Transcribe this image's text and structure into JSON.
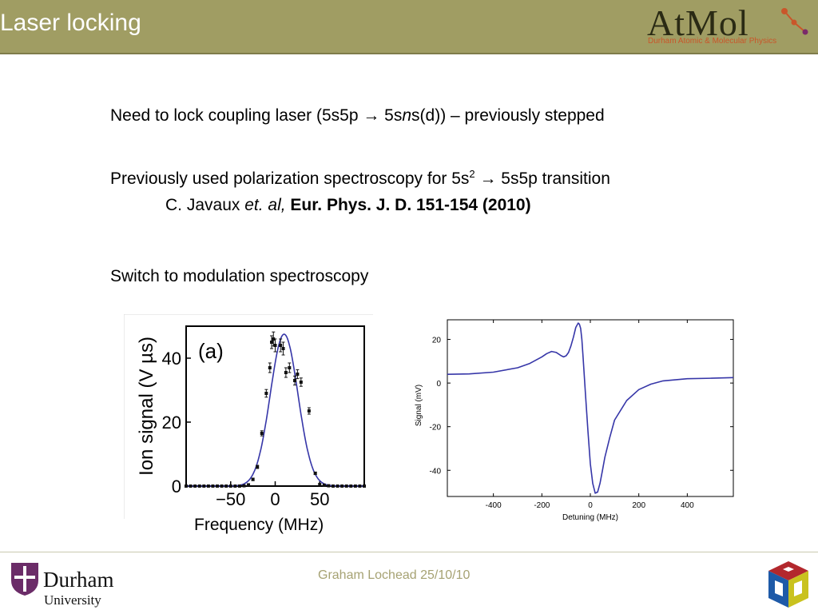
{
  "header": {
    "title": "Laser locking",
    "logo_text": "AtMol",
    "logo_subtitle": "Durham Atomic & Molecular Physics"
  },
  "bullets": {
    "b1_prefix": "Need to lock coupling laser (5s5p → 5s",
    "b1_italic": "n",
    "b1_suffix": "s(d)) – previously stepped",
    "b2_prefix": "Previously used polarization spectroscopy for 5s",
    "b2_sup": "2",
    "b2_suffix": " → 5s5p transition",
    "ref_author": "C. Javaux ",
    "ref_etal": "et. al,",
    "ref_journal": " Eur. Phys. J. D. 151-154 (2010)",
    "b3": "Switch to modulation spectroscopy"
  },
  "footer": {
    "text": "Graham Lochead  25/10/10",
    "university_name": "Durham",
    "university_sub": "University"
  },
  "colors": {
    "header_bg": "#a09d63",
    "curve": "#3636a8",
    "points": "#111111"
  },
  "chart_data": [
    {
      "type": "scatter",
      "panel_label": "(a)",
      "title": "",
      "xlabel": "Frequency (MHz)",
      "ylabel": "Ion signal (V µs)",
      "xlim": [
        -100,
        100
      ],
      "ylim": [
        0,
        50
      ],
      "xticks": [
        -50,
        0,
        50
      ],
      "xtick_labels": [
        "−50",
        "0",
        "50"
      ],
      "yticks": [
        0,
        20,
        40
      ],
      "grid": false,
      "legend": "none",
      "series": [
        {
          "kind": "points_with_errorbars",
          "x": [
            -100,
            -95,
            -90,
            -85,
            -80,
            -75,
            -70,
            -65,
            -60,
            -55,
            -50,
            -45,
            -40,
            -35,
            -30,
            -25,
            -20,
            -15,
            -10,
            -6,
            -4,
            -2,
            0,
            6,
            9,
            12,
            16,
            22,
            25,
            29,
            38,
            45,
            50,
            55,
            60,
            65,
            70,
            75,
            80,
            85,
            90,
            95,
            100
          ],
          "y": [
            0,
            0,
            0,
            0,
            0,
            0,
            0,
            0,
            0,
            0,
            0,
            0,
            0,
            0.1,
            0.4,
            2.1,
            6,
            16.5,
            29,
            37,
            45,
            46,
            44,
            44,
            43,
            35.5,
            37,
            33,
            35,
            32.5,
            23.5,
            4,
            0.5,
            0.3,
            0.1,
            0,
            0,
            0,
            0,
            0,
            0,
            0,
            0
          ],
          "err": [
            0,
            0,
            0,
            0,
            0,
            0,
            0,
            0,
            0,
            0,
            0,
            0,
            0,
            0,
            0,
            0.4,
            0.5,
            0.8,
            1.2,
            1.5,
            2,
            2.2,
            2,
            2,
            2,
            1.5,
            1.5,
            1.4,
            1.4,
            1.3,
            1,
            0.4,
            0,
            0,
            0,
            0,
            0,
            0,
            0,
            0,
            0,
            0,
            0
          ]
        },
        {
          "kind": "gaussian_fit",
          "amplitude": 47.5,
          "center": 10,
          "sigma": 15.5
        }
      ]
    },
    {
      "type": "line",
      "title": "",
      "xlabel": "Detuning (MHz)",
      "ylabel": "Signal (mV)",
      "xlim": [
        -590,
        590
      ],
      "ylim": [
        -52,
        29
      ],
      "xticks": [
        -400,
        -200,
        0,
        200,
        400
      ],
      "yticks": [
        -40,
        -20,
        0,
        20
      ],
      "grid": false,
      "legend": "none",
      "series": [
        {
          "x": [
            -590,
            -500,
            -400,
            -300,
            -250,
            -200,
            -180,
            -160,
            -140,
            -120,
            -110,
            -100,
            -90,
            -80,
            -70,
            -60,
            -50,
            -45,
            -40,
            -35,
            -30,
            -20,
            -10,
            0,
            10,
            20,
            30,
            40,
            50,
            60,
            80,
            100,
            150,
            200,
            250,
            300,
            400,
            500,
            590
          ],
          "y": [
            4,
            4.2,
            5,
            7,
            9,
            12,
            13.5,
            14.5,
            14,
            12.5,
            12,
            12.5,
            14,
            17,
            21,
            25.5,
            27.5,
            27,
            25,
            20,
            12,
            -5,
            -22,
            -37,
            -46,
            -50.5,
            -50,
            -46,
            -40,
            -34,
            -25,
            -17,
            -8,
            -3,
            -0.5,
            1,
            2,
            2.2,
            2.5
          ]
        }
      ]
    }
  ]
}
